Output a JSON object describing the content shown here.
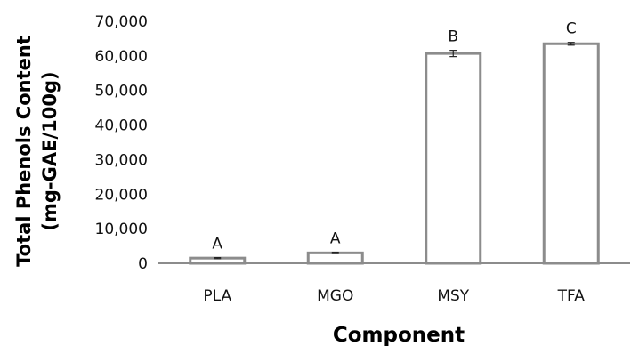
{
  "chart_data": {
    "type": "bar",
    "categories": [
      "PLA",
      "MGO",
      "MSY",
      "TFA"
    ],
    "values": [
      1500,
      3000,
      60700,
      63500
    ],
    "errors": [
      150,
      200,
      900,
      400
    ],
    "significance_labels": [
      "A",
      "A",
      "B",
      "C"
    ],
    "ylim": [
      0,
      70000
    ],
    "yticks": [
      0,
      10000,
      20000,
      30000,
      40000,
      50000,
      60000,
      70000
    ],
    "ytick_labels": [
      "0",
      "10,000",
      "20,000",
      "30,000",
      "40,000",
      "50,000",
      "60,000",
      "70,000"
    ],
    "xlabel": "Component",
    "ylabel_line1": "Total Phenols Content",
    "ylabel_line2": "(mg-GAE/100g)",
    "grid": false,
    "bar_fill": "#ffffff",
    "bar_stroke": "#8c8c8c",
    "axis_color": "#8c8c8c"
  }
}
